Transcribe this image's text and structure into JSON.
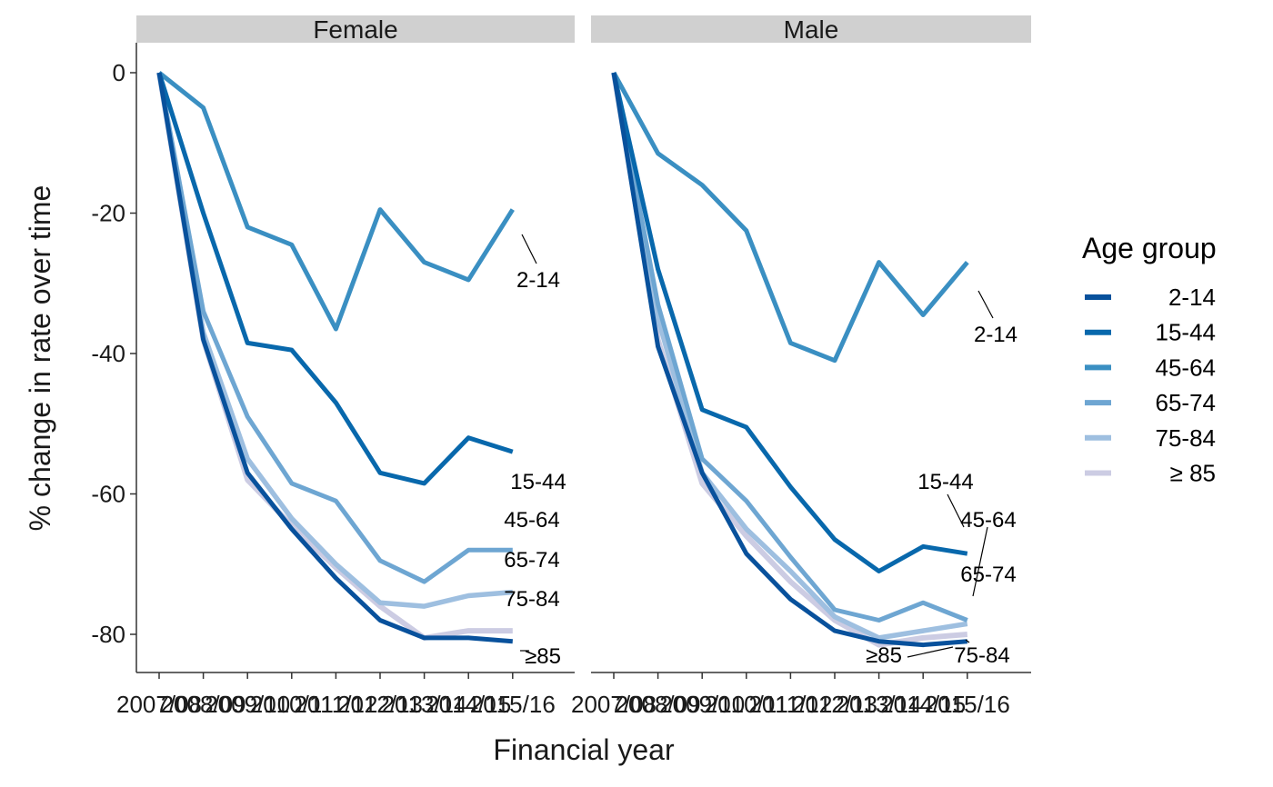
{
  "chart_data": {
    "type": "line",
    "xlabel": "Financial year",
    "ylabel": "% change in rate over time",
    "x": [
      "2007/08",
      "2008/09",
      "2009/10",
      "2010/11",
      "2011/12",
      "2012/13",
      "2013/14",
      "2014/15",
      "2015/16"
    ],
    "x_tick_text": [
      "2007/08",
      "2008/09",
      "2009/10",
      "2010/11",
      "2011/12",
      "2012/13",
      "2013/14",
      "2014/15",
      "2015/16"
    ],
    "ylim": [
      -85,
      4
    ],
    "y_ticks": [
      0,
      -20,
      -40,
      -60,
      -80
    ],
    "grid": false,
    "legend": {
      "title": "Age group",
      "placement": "right",
      "entries": [
        "2-14",
        "15-44",
        "45-64",
        "65-74",
        "75-84",
        "≥ 85"
      ]
    },
    "series_colors": {
      "2-14": "#08519c",
      "15-44": "#0868ac",
      "45-64": "#3a8fc2",
      "65-74": "#6ea6d2",
      "75-84": "#9ebfe0",
      "≥ 85": "#cccce3"
    },
    "panels": [
      {
        "strip": "Female",
        "series": [
          {
            "name": "2-14",
            "values": [
              0,
              -38,
              -57,
              -65,
              -72,
              -78,
              -80.5,
              -80.5,
              -81
            ]
          },
          {
            "name": "15-44",
            "values": [
              0,
              -20,
              -38.5,
              -39.5,
              -47,
              -57,
              -58.5,
              -52,
              -54
            ]
          },
          {
            "name": "45-64",
            "values": [
              0,
              -5,
              -22,
              -24.5,
              -36.5,
              -19.5,
              -27,
              -29.5,
              -19.5
            ]
          },
          {
            "name": "65-74",
            "values": [
              0,
              -34,
              -49,
              -58.5,
              -61,
              -69.5,
              -72.5,
              -68,
              -68
            ]
          },
          {
            "name": "75-84",
            "values": [
              0,
              -37,
              -55,
              -63.5,
              -70,
              -75.5,
              -76,
              -74.5,
              -74
            ]
          },
          {
            "name": "≥ 85",
            "values": [
              0,
              -38,
              -58,
              -64.5,
              -70.5,
              -76,
              -80.5,
              -79.5,
              -79.5
            ]
          }
        ],
        "end_labels": [
          "2-14",
          "15-44",
          "45-64",
          "65-74",
          "75-84",
          "≥85"
        ]
      },
      {
        "strip": "Male",
        "series": [
          {
            "name": "2-14",
            "values": [
              0,
              -39,
              -57,
              -68.5,
              -75,
              -79.5,
              -81,
              -81.5,
              -81
            ]
          },
          {
            "name": "15-44",
            "values": [
              0,
              -28,
              -48,
              -50.5,
              -59,
              -66.5,
              -71,
              -67.5,
              -68.5
            ]
          },
          {
            "name": "45-64",
            "values": [
              0,
              -11.5,
              -16,
              -22.5,
              -38.5,
              -41,
              -27,
              -34.5,
              -27
            ]
          },
          {
            "name": "65-74",
            "values": [
              0,
              -33,
              -55,
              -61,
              -69,
              -76.5,
              -78,
              -75.5,
              -78
            ]
          },
          {
            "name": "75-84",
            "values": [
              0,
              -35,
              -57,
              -65,
              -71,
              -77.5,
              -80.5,
              -79.5,
              -78.5
            ]
          },
          {
            "name": "≥ 85",
            "values": [
              0,
              -38,
              -58.5,
              -66,
              -72.5,
              -78,
              -81.5,
              -80.5,
              -80
            ]
          }
        ],
        "end_labels": [
          "2-14",
          "15-44",
          "45-64",
          "65-74",
          "75-84",
          "≥85"
        ]
      }
    ]
  }
}
